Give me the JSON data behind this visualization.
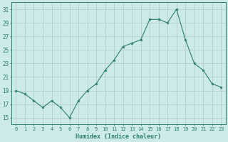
{
  "x": [
    0,
    1,
    2,
    3,
    4,
    5,
    6,
    7,
    8,
    9,
    10,
    11,
    12,
    13,
    14,
    15,
    16,
    17,
    18,
    19,
    20,
    21,
    22,
    23
  ],
  "y": [
    19,
    18.5,
    17.5,
    16.5,
    17.5,
    16.5,
    15,
    17.5,
    19,
    20,
    22,
    23.5,
    25.5,
    26,
    26.5,
    29.5,
    29.5,
    29,
    31,
    26.5,
    23,
    22,
    20,
    19.5
  ],
  "line_color": "#2e7d6e",
  "marker": "*",
  "marker_size": 3,
  "bg_color": "#cceaea",
  "grid_color": "#b0c8c8",
  "xlabel": "Humidex (Indice chaleur)",
  "xlim": [
    -0.5,
    23.5
  ],
  "ylim": [
    14,
    32
  ],
  "yticks": [
    15,
    17,
    19,
    21,
    23,
    25,
    27,
    29,
    31
  ],
  "xticks": [
    0,
    1,
    2,
    3,
    4,
    5,
    6,
    7,
    8,
    9,
    10,
    11,
    12,
    13,
    14,
    15,
    16,
    17,
    18,
    19,
    20,
    21,
    22,
    23
  ]
}
